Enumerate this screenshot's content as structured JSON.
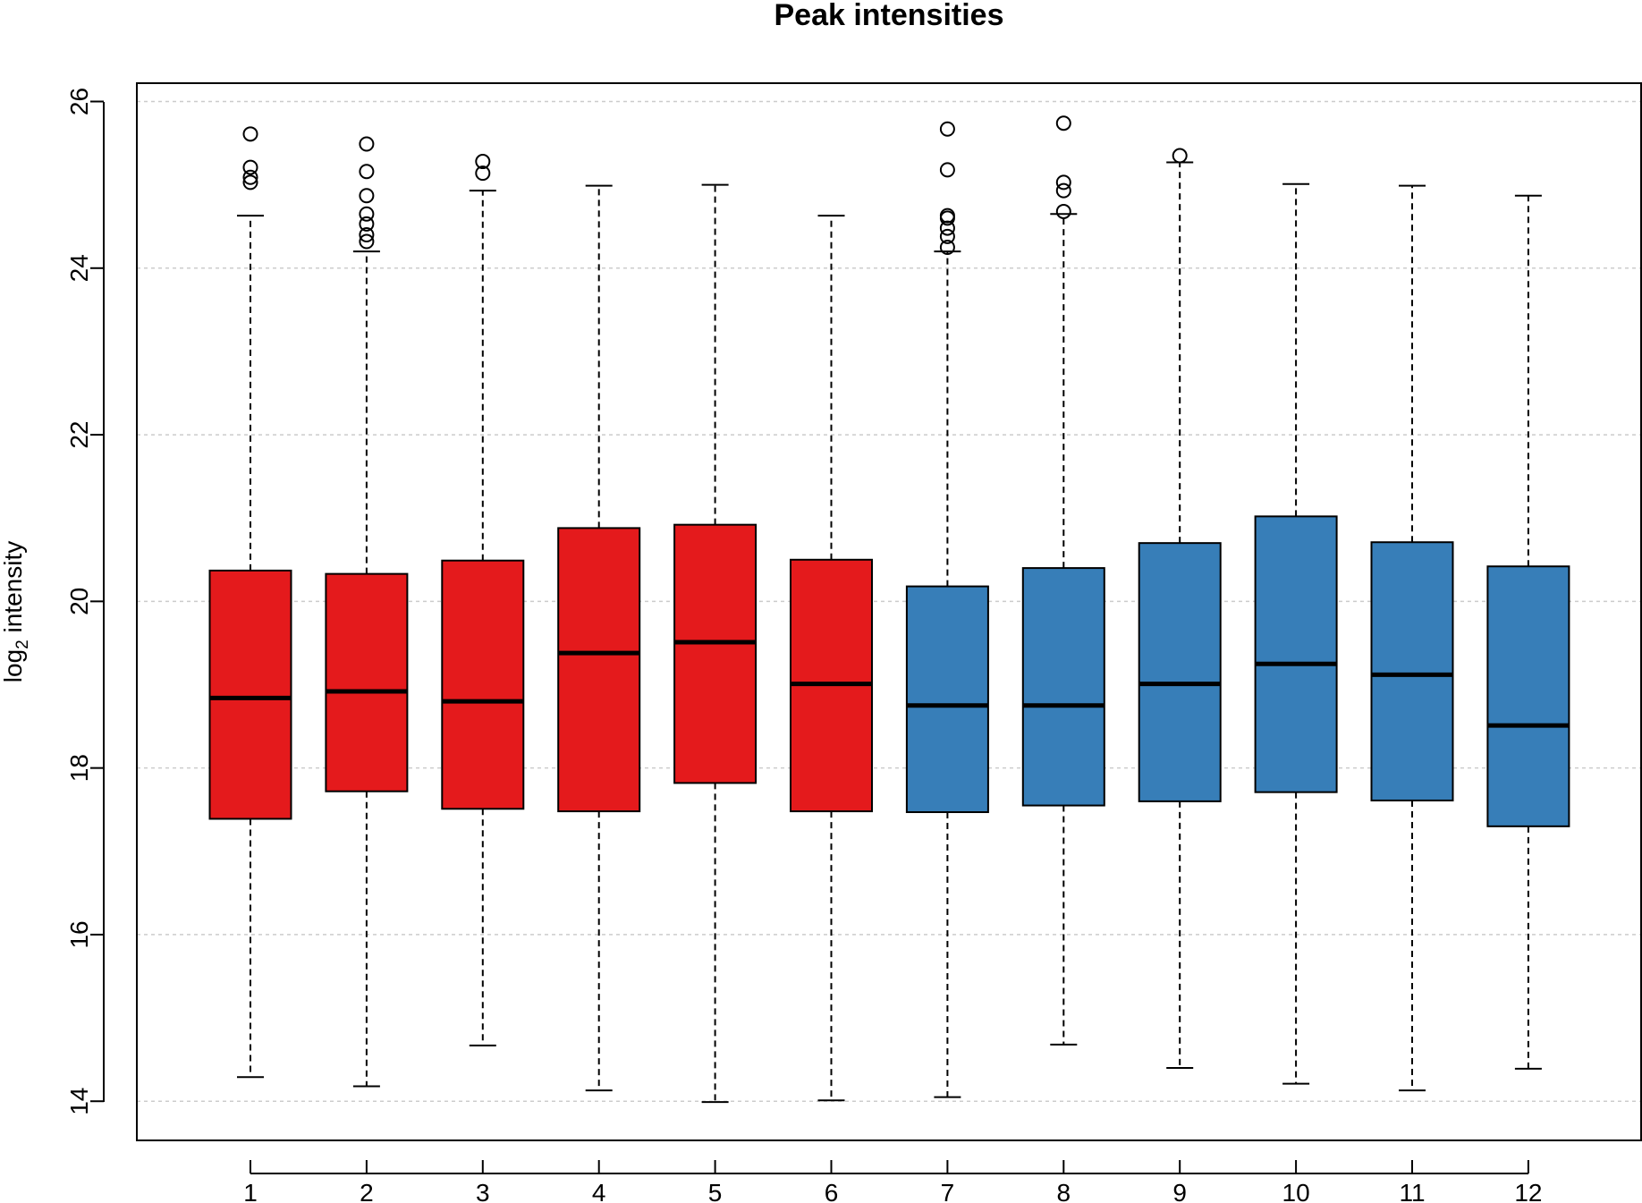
{
  "chart_data": {
    "type": "boxplot",
    "title": "Peak intensities",
    "xlabel": "",
    "ylabel": {
      "prefix": "log",
      "subscript": "2",
      "suffix": " intensity"
    },
    "ylim": [
      13.53,
      26.22
    ],
    "yticks": [
      14,
      16,
      18,
      20,
      22,
      24,
      26
    ],
    "grid": "horizontal dashed",
    "legend": "none",
    "colors": {
      "group_a": "#E41A1C",
      "group_b": "#377EB8",
      "grid": "#cccccc",
      "axis": "#000000"
    },
    "categories": [
      "1",
      "2",
      "3",
      "4",
      "5",
      "6",
      "7",
      "8",
      "9",
      "10",
      "11",
      "12"
    ],
    "boxes": [
      {
        "label": "1",
        "group": "group_a",
        "whisker_low": 14.29,
        "q1": 17.39,
        "median": 18.84,
        "q3": 20.37,
        "whisker_high": 24.63,
        "outliers": [
          25.61,
          25.21,
          25.09,
          25.03
        ]
      },
      {
        "label": "2",
        "group": "group_a",
        "whisker_low": 14.18,
        "q1": 17.72,
        "median": 18.92,
        "q3": 20.33,
        "whisker_high": 24.2,
        "outliers": [
          25.49,
          25.16,
          24.87,
          24.65,
          24.53,
          24.4,
          24.32
        ]
      },
      {
        "label": "3",
        "group": "group_a",
        "whisker_low": 14.67,
        "q1": 17.51,
        "median": 18.8,
        "q3": 20.49,
        "whisker_high": 24.93,
        "outliers": [
          25.28,
          25.14
        ]
      },
      {
        "label": "4",
        "group": "group_a",
        "whisker_low": 14.13,
        "q1": 17.48,
        "median": 19.38,
        "q3": 20.88,
        "whisker_high": 24.99,
        "outliers": []
      },
      {
        "label": "5",
        "group": "group_a",
        "whisker_low": 13.99,
        "q1": 17.82,
        "median": 19.51,
        "q3": 20.92,
        "whisker_high": 25.0,
        "outliers": []
      },
      {
        "label": "6",
        "group": "group_a",
        "whisker_low": 14.01,
        "q1": 17.48,
        "median": 19.01,
        "q3": 20.5,
        "whisker_high": 24.63,
        "outliers": []
      },
      {
        "label": "7",
        "group": "group_b",
        "whisker_low": 14.05,
        "q1": 17.47,
        "median": 18.75,
        "q3": 20.18,
        "whisker_high": 24.2,
        "outliers": [
          25.67,
          25.18,
          24.63,
          24.6,
          24.48,
          24.38,
          24.25
        ]
      },
      {
        "label": "8",
        "group": "group_b",
        "whisker_low": 14.68,
        "q1": 17.55,
        "median": 18.75,
        "q3": 20.4,
        "whisker_high": 24.65,
        "outliers": [
          25.74,
          25.03,
          24.93,
          24.68
        ]
      },
      {
        "label": "9",
        "group": "group_b",
        "whisker_low": 14.4,
        "q1": 17.6,
        "median": 19.01,
        "q3": 20.7,
        "whisker_high": 25.27,
        "outliers": [
          25.35
        ]
      },
      {
        "label": "10",
        "group": "group_b",
        "whisker_low": 14.21,
        "q1": 17.71,
        "median": 19.25,
        "q3": 21.02,
        "whisker_high": 25.01,
        "outliers": []
      },
      {
        "label": "11",
        "group": "group_b",
        "whisker_low": 14.13,
        "q1": 17.61,
        "median": 19.12,
        "q3": 20.71,
        "whisker_high": 24.99,
        "outliers": []
      },
      {
        "label": "12",
        "group": "group_b",
        "whisker_low": 14.39,
        "q1": 17.3,
        "median": 18.51,
        "q3": 20.42,
        "whisker_high": 24.87,
        "outliers": []
      }
    ]
  }
}
